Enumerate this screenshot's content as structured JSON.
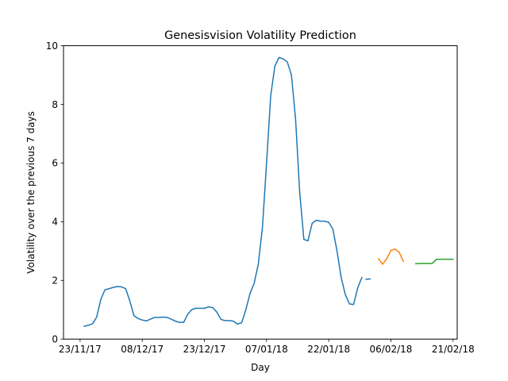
{
  "chart_data": {
    "type": "line",
    "title": "Genesisvision Volatility Prediction",
    "xlabel": "Day",
    "ylabel": "Volatility over the previous 7 days",
    "xlim": [
      "2017-11-19",
      "2018-02-22"
    ],
    "ylim": [
      0,
      10
    ],
    "x_ticks": [
      {
        "date": "2017-11-23",
        "label": "23/11/17"
      },
      {
        "date": "2017-12-08",
        "label": "08/12/17"
      },
      {
        "date": "2017-12-23",
        "label": "23/12/17"
      },
      {
        "date": "2018-01-07",
        "label": "07/01/18"
      },
      {
        "date": "2018-01-22",
        "label": "22/01/18"
      },
      {
        "date": "2018-02-06",
        "label": "06/02/18"
      },
      {
        "date": "2018-02-21",
        "label": "21/02/18"
      }
    ],
    "y_ticks": [
      0,
      2,
      4,
      6,
      8,
      10
    ],
    "grid": false,
    "legend": "none",
    "series": [
      {
        "color": "#1f77b4",
        "x": [
          "2017-11-24",
          "2017-11-25",
          "2017-11-26",
          "2017-11-27",
          "2017-11-28",
          "2017-11-29",
          "2017-11-30",
          "2017-12-01",
          "2017-12-02",
          "2017-12-03",
          "2017-12-04",
          "2017-12-05",
          "2017-12-06",
          "2017-12-07",
          "2017-12-08",
          "2017-12-09",
          "2017-12-10",
          "2017-12-11",
          "2017-12-12",
          "2017-12-13",
          "2017-12-14",
          "2017-12-15",
          "2017-12-16",
          "2017-12-17",
          "2017-12-18",
          "2017-12-19",
          "2017-12-20",
          "2017-12-21",
          "2017-12-22",
          "2017-12-23",
          "2017-12-24",
          "2017-12-25",
          "2017-12-26",
          "2017-12-27",
          "2017-12-28",
          "2017-12-29",
          "2017-12-30",
          "2017-12-31",
          "2018-01-01",
          "2018-01-02",
          "2018-01-03",
          "2018-01-04",
          "2018-01-05",
          "2018-01-06",
          "2018-01-07",
          "2018-01-08",
          "2018-01-09",
          "2018-01-10",
          "2018-01-11",
          "2018-01-12",
          "2018-01-13",
          "2018-01-14",
          "2018-01-15",
          "2018-01-16",
          "2018-01-17",
          "2018-01-18",
          "2018-01-19",
          "2018-01-20",
          "2018-01-21",
          "2018-01-22",
          "2018-01-23",
          "2018-01-24",
          "2018-01-25",
          "2018-01-26",
          "2018-01-27",
          "2018-01-28",
          "2018-01-29",
          "2018-01-30"
        ],
        "y": [
          0.44,
          0.47,
          0.52,
          0.75,
          1.35,
          1.68,
          1.72,
          1.76,
          1.79,
          1.78,
          1.72,
          1.3,
          0.8,
          0.7,
          0.65,
          0.62,
          0.68,
          0.74,
          0.74,
          0.75,
          0.74,
          0.68,
          0.61,
          0.57,
          0.57,
          0.85,
          1.01,
          1.05,
          1.05,
          1.05,
          1.1,
          1.07,
          0.92,
          0.67,
          0.63,
          0.63,
          0.61,
          0.51,
          0.56,
          1.0,
          1.55,
          1.9,
          2.55,
          3.8,
          6.0,
          8.3,
          9.3,
          9.6,
          9.55,
          9.45,
          9.0,
          7.5,
          5.0,
          3.4,
          3.35,
          3.95,
          4.05,
          4.02,
          4.02,
          3.98,
          3.75,
          3.0,
          2.1,
          1.52,
          1.2,
          1.18,
          1.75,
          2.1
        ]
      },
      {
        "color": "#1f77b4",
        "x": [
          "2018-01-31",
          "2018-02-01"
        ],
        "y": [
          2.04,
          2.05
        ]
      },
      {
        "color": "#ff7f0e",
        "x": [
          "2018-02-03",
          "2018-02-04",
          "2018-02-05",
          "2018-02-06",
          "2018-02-07",
          "2018-02-08",
          "2018-02-09"
        ],
        "y": [
          2.74,
          2.55,
          2.74,
          3.02,
          3.07,
          2.96,
          2.65
        ]
      },
      {
        "color": "#2ca02c",
        "x": [
          "2018-02-12",
          "2018-02-13",
          "2018-02-14",
          "2018-02-15",
          "2018-02-16",
          "2018-02-17",
          "2018-02-18",
          "2018-02-19",
          "2018-02-20",
          "2018-02-21"
        ],
        "y": [
          2.57,
          2.58,
          2.58,
          2.58,
          2.58,
          2.72,
          2.72,
          2.72,
          2.72,
          2.72
        ]
      }
    ]
  }
}
